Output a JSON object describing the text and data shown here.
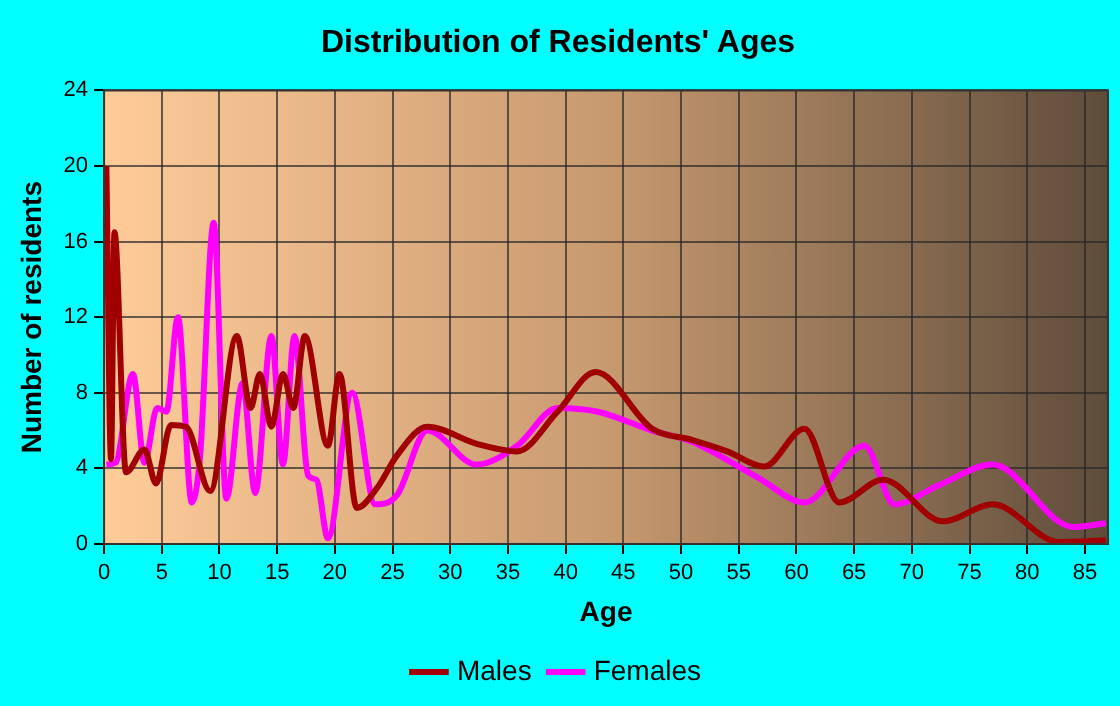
{
  "chart_data": {
    "type": "line",
    "title": "Distribution of Residents' Ages",
    "xlabel": "Age",
    "ylabel": "Number of residents",
    "xlim": [
      0,
      87
    ],
    "xticks": [
      0,
      5,
      10,
      15,
      20,
      25,
      30,
      35,
      40,
      45,
      50,
      55,
      60,
      65,
      70,
      75,
      80,
      85
    ],
    "ylim": [
      0,
      24
    ],
    "yticks": [
      0,
      4,
      8,
      12,
      16,
      20,
      24
    ],
    "grid": true,
    "legend": "bottom",
    "marker": "none",
    "line_style": "solid",
    "series": [
      {
        "name": "Males",
        "color": "#a00000",
        "x": [
          0.2,
          0.6,
          0.9,
          1.9,
          3.5,
          4.5,
          5.8,
          7.1,
          9.2,
          11.5,
          12.7,
          13.5,
          14.5,
          15.5,
          16.4,
          17.4,
          19.4,
          20.4,
          21.9,
          23.7,
          25.4,
          28,
          32.3,
          35.8,
          39.3,
          42.6,
          47.5,
          51,
          54,
          57.2,
          60.7,
          63.7,
          67.5,
          72.7,
          77,
          82.8,
          86.8
        ],
        "values": [
          20,
          4.5,
          16.5,
          3.8,
          5,
          3.2,
          6.3,
          6.2,
          2.8,
          11,
          7.2,
          9,
          6.2,
          9,
          7.2,
          11,
          5.2,
          9,
          1.9,
          3,
          4.7,
          6.2,
          5.3,
          4.9,
          7,
          9.1,
          6.1,
          5.5,
          4.9,
          4.1,
          6.1,
          2.2,
          3.4,
          1.2,
          2.1,
          0.1,
          0.2
        ]
      },
      {
        "name": "Females",
        "color": "#ff00ff",
        "x": [
          0.2,
          1,
          2.5,
          3.5,
          4.6,
          5.4,
          6.4,
          7.6,
          8.3,
          9.5,
          10.6,
          12,
          13.1,
          14.5,
          15.5,
          16.5,
          17.7,
          18.4,
          19.4,
          21.5,
          23.5,
          25.4,
          28,
          32.3,
          35.8,
          39.3,
          42.8,
          47.5,
          51,
          56.7,
          60.7,
          65.9,
          68.5,
          72.3,
          77,
          84,
          86.8
        ],
        "values": [
          4.2,
          4.3,
          9,
          4.3,
          7.2,
          7,
          12,
          2.2,
          4.5,
          17,
          2.4,
          8.5,
          2.7,
          11,
          4.2,
          11,
          3.6,
          3.4,
          0.3,
          8,
          2.1,
          2.6,
          6,
          4.2,
          5.2,
          7.2,
          7,
          6,
          5.4,
          3.5,
          2.2,
          5.2,
          2.1,
          3.1,
          4.2,
          0.9,
          1.1
        ]
      }
    ]
  }
}
